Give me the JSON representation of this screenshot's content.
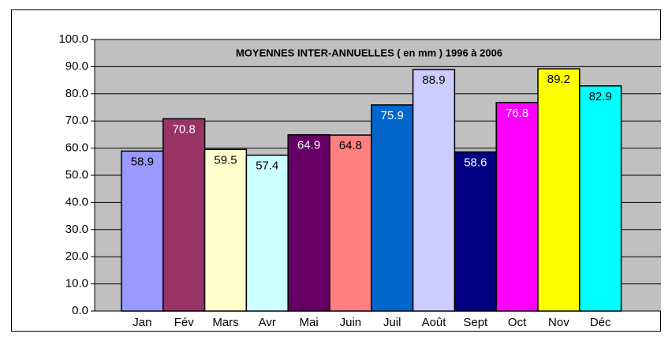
{
  "chart_data": {
    "type": "bar",
    "title": "MOYENNES INTER-ANNUELLES ( en mm ) 1996 à 2006",
    "categories": [
      "Jan",
      "Fév",
      "Mars",
      "Avr",
      "Mai",
      "Juin",
      "Juil",
      "Août",
      "Sept",
      "Oct",
      "Nov",
      "Déc"
    ],
    "values": [
      58.9,
      70.8,
      59.5,
      57.4,
      64.9,
      64.8,
      75.9,
      88.9,
      58.6,
      76.8,
      89.2,
      82.9
    ],
    "colors": [
      "#9999ff",
      "#993366",
      "#ffffcc",
      "#ccffff",
      "#660066",
      "#ff8080",
      "#0066cc",
      "#ccccff",
      "#000080",
      "#ff00ff",
      "#ffff00",
      "#00ffff"
    ],
    "ylim": [
      0,
      100
    ],
    "yticks": [
      {
        "value": 0,
        "label": "0.0"
      },
      {
        "value": 10,
        "label": "10.0"
      },
      {
        "value": 20,
        "label": "20.0"
      },
      {
        "value": 30,
        "label": "30.0"
      },
      {
        "value": 40,
        "label": "40.0"
      },
      {
        "value": 50,
        "label": "50.0"
      },
      {
        "value": 60,
        "label": "60.0"
      },
      {
        "value": 70,
        "label": "70.0"
      },
      {
        "value": 80,
        "label": "80.0"
      },
      {
        "value": 90,
        "label": "90.0"
      },
      {
        "value": 100,
        "label": "100.0"
      }
    ],
    "grid": true
  }
}
